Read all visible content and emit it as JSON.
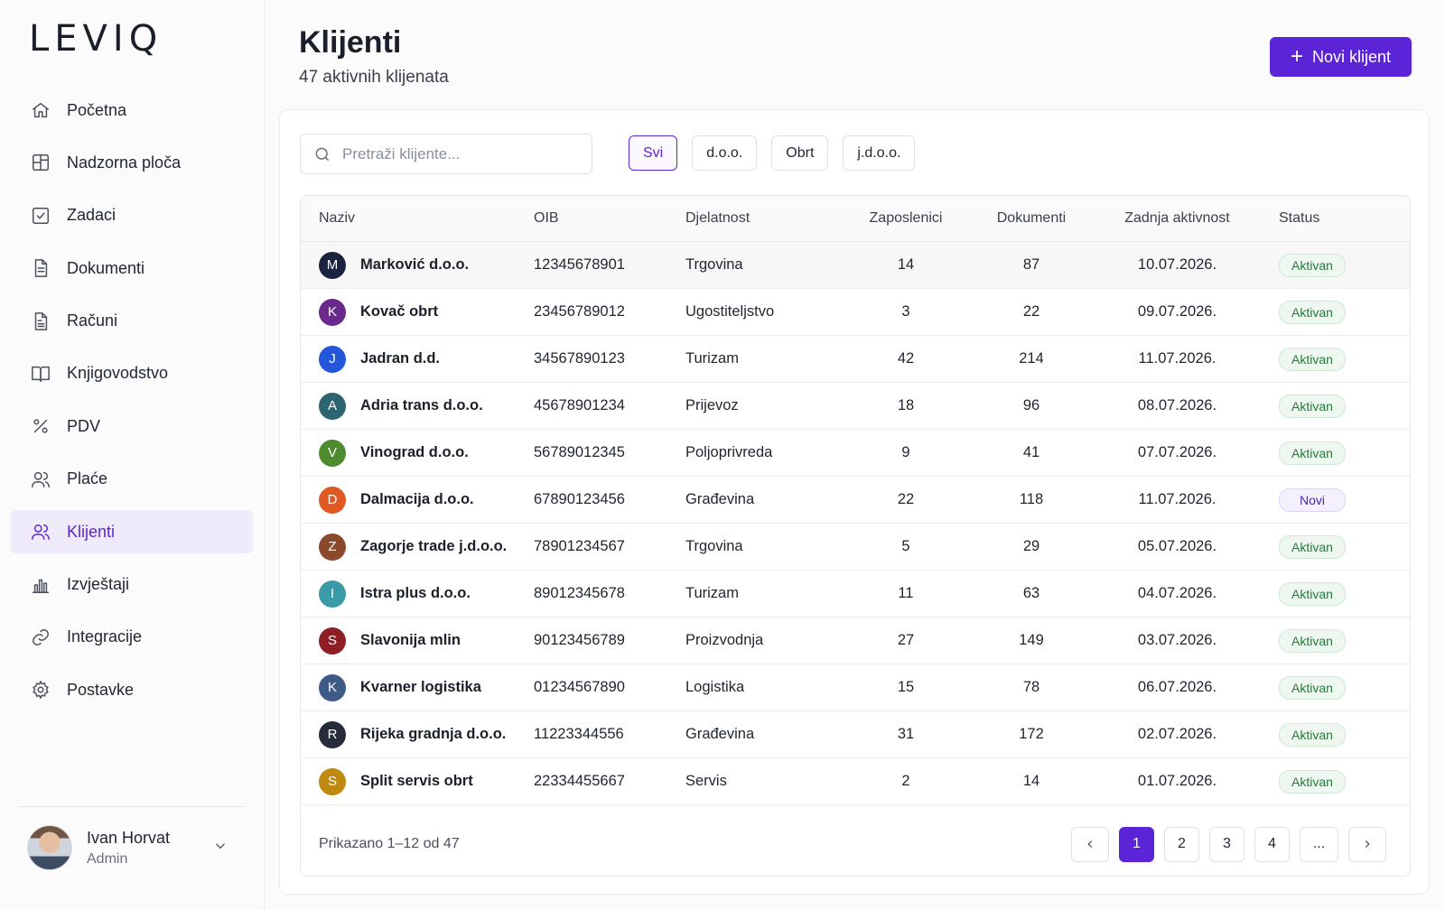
{
  "brand": {
    "logo_text": "LEVIQ"
  },
  "sidebar": {
    "items": [
      {
        "label": "Početna",
        "icon": "home-icon",
        "active": false
      },
      {
        "label": "Nadzorna ploča",
        "icon": "dashboard-icon",
        "active": false
      },
      {
        "label": "Zadaci",
        "icon": "checkbox-icon",
        "active": false
      },
      {
        "label": "Dokumenti",
        "icon": "document-icon",
        "active": false
      },
      {
        "label": "Računi",
        "icon": "invoice-icon",
        "active": false
      },
      {
        "label": "Knjigovodstvo",
        "icon": "book-icon",
        "active": false
      },
      {
        "label": "PDV",
        "icon": "percent-icon",
        "active": false
      },
      {
        "label": "Plaće",
        "icon": "users-icon",
        "active": false
      },
      {
        "label": "Klijenti",
        "icon": "users-icon",
        "active": true
      },
      {
        "label": "Izvještaji",
        "icon": "bar-chart-icon",
        "active": false
      },
      {
        "label": "Integracije",
        "icon": "link-icon",
        "active": false
      },
      {
        "label": "Postavke",
        "icon": "gear-icon",
        "active": false
      }
    ],
    "user": {
      "name": "Ivan Horvat",
      "role": "Admin"
    }
  },
  "header": {
    "title": "Klijenti",
    "subtitle": "47 aktivnih klijenata",
    "new_button": "Novi klijent"
  },
  "search": {
    "placeholder": "Pretraži klijente..."
  },
  "filters": [
    {
      "label": "Svi",
      "active": true
    },
    {
      "label": "d.o.o.",
      "active": false
    },
    {
      "label": "Obrt",
      "active": false
    },
    {
      "label": "j.d.o.o.",
      "active": false
    }
  ],
  "table": {
    "columns": [
      "Naziv",
      "OIB",
      "Djelatnost",
      "Zaposlenici",
      "Dokumenti",
      "Zadnja aktivnost",
      "Status"
    ],
    "rows": [
      {
        "initial": "M",
        "color": "#1b2340",
        "name": "Marković d.o.o.",
        "oib": "12345678901",
        "activity": "Trgovina",
        "employees": "14",
        "documents": "87",
        "last": "10.07.2026.",
        "status": "Aktivan"
      },
      {
        "initial": "K",
        "color": "#6a2a8c",
        "name": "Kovač obrt",
        "oib": "23456789012",
        "activity": "Ugostiteljstvo",
        "employees": "3",
        "documents": "22",
        "last": "09.07.2026.",
        "status": "Aktivan"
      },
      {
        "initial": "J",
        "color": "#2356d8",
        "name": "Jadran d.d.",
        "oib": "34567890123",
        "activity": "Turizam",
        "employees": "42",
        "documents": "214",
        "last": "11.07.2026.",
        "status": "Aktivan"
      },
      {
        "initial": "A",
        "color": "#2c6470",
        "name": "Adria trans d.o.o.",
        "oib": "45678901234",
        "activity": "Prijevoz",
        "employees": "18",
        "documents": "96",
        "last": "08.07.2026.",
        "status": "Aktivan"
      },
      {
        "initial": "V",
        "color": "#4e8a2e",
        "name": "Vinograd d.o.o.",
        "oib": "56789012345",
        "activity": "Poljoprivreda",
        "employees": "9",
        "documents": "41",
        "last": "07.07.2026.",
        "status": "Aktivan"
      },
      {
        "initial": "D",
        "color": "#de5a22",
        "name": "Dalmacija d.o.o.",
        "oib": "67890123456",
        "activity": "Građevina",
        "employees": "22",
        "documents": "118",
        "last": "11.07.2026.",
        "status": "Novi"
      },
      {
        "initial": "Z",
        "color": "#8a4a2a",
        "name": "Zagorje trade j.d.o.o.",
        "oib": "78901234567",
        "activity": "Trgovina",
        "employees": "5",
        "documents": "29",
        "last": "05.07.2026.",
        "status": "Aktivan"
      },
      {
        "initial": "I",
        "color": "#3a9aa8",
        "name": "Istra plus d.o.o.",
        "oib": "89012345678",
        "activity": "Turizam",
        "employees": "11",
        "documents": "63",
        "last": "04.07.2026.",
        "status": "Aktivan"
      },
      {
        "initial": "S",
        "color": "#8c1e24",
        "name": "Slavonija mlin",
        "oib": "90123456789",
        "activity": "Proizvodnja",
        "employees": "27",
        "documents": "149",
        "last": "03.07.2026.",
        "status": "Aktivan"
      },
      {
        "initial": "K",
        "color": "#3e5a86",
        "name": "Kvarner logistika",
        "oib": "01234567890",
        "activity": "Logistika",
        "employees": "15",
        "documents": "78",
        "last": "06.07.2026.",
        "status": "Aktivan"
      },
      {
        "initial": "R",
        "color": "#262c3a",
        "name": "Rijeka gradnja d.o.o.",
        "oib": "11223344556",
        "activity": "Građevina",
        "employees": "31",
        "documents": "172",
        "last": "02.07.2026.",
        "status": "Aktivan"
      },
      {
        "initial": "S",
        "color": "#c08a10",
        "name": "Split servis obrt",
        "oib": "22334455667",
        "activity": "Servis",
        "employees": "2",
        "documents": "14",
        "last": "01.07.2026.",
        "status": "Aktivan"
      }
    ]
  },
  "pagination": {
    "summary": "Prikazano 1–12 od 47",
    "pages": [
      "1",
      "2",
      "3",
      "4",
      "..."
    ],
    "current": "1"
  },
  "colors": {
    "accent": "#5b24d6",
    "active_badge": "#257a3a",
    "new_badge": "#4b24b8"
  }
}
